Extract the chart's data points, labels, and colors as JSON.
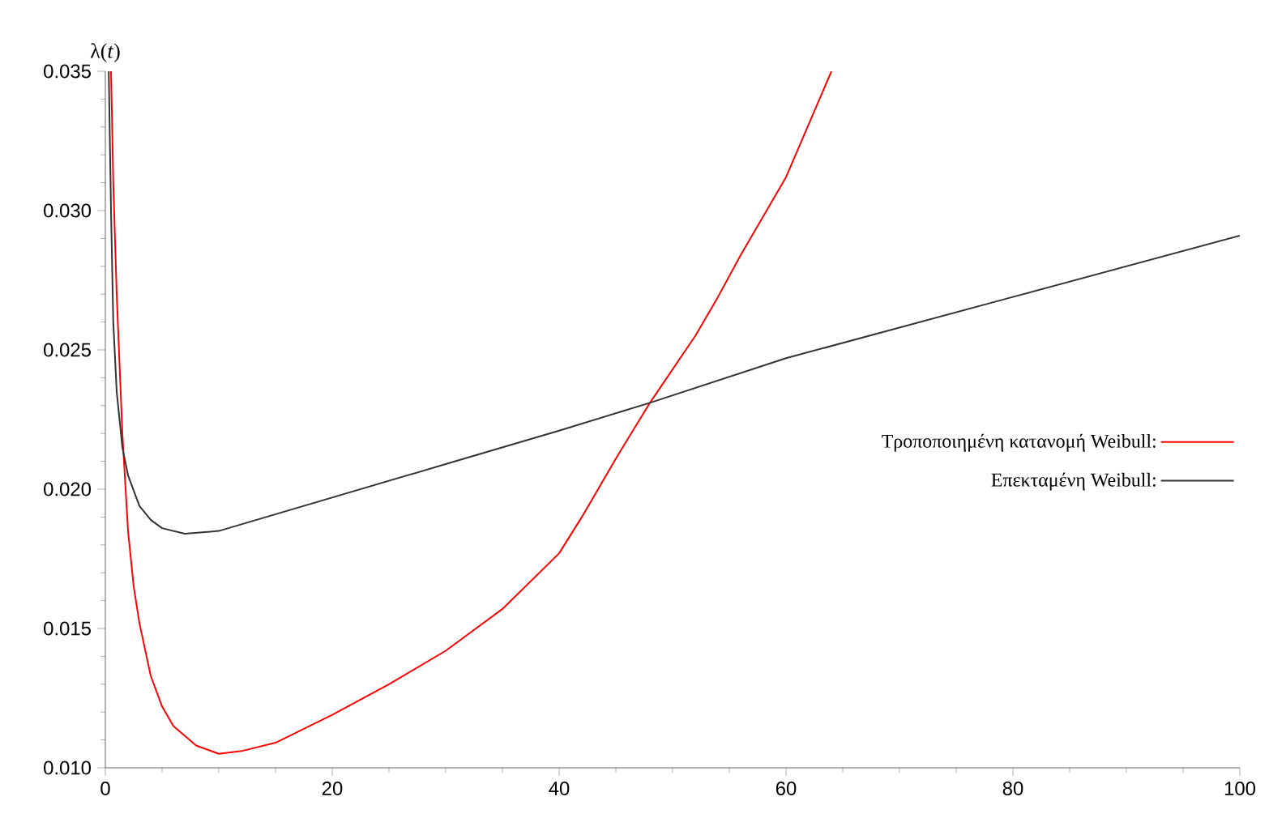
{
  "chart_data": {
    "type": "line",
    "ylabel": "λ(*t*)",
    "xlim": [
      0,
      100
    ],
    "ylim": [
      0.01,
      0.035
    ],
    "xticks": [
      0,
      20,
      40,
      60,
      80,
      100
    ],
    "yticks": [
      {
        "value": 0.01,
        "label": "0.010"
      },
      {
        "value": 0.015,
        "label": "0.015"
      },
      {
        "value": 0.02,
        "label": "0.020"
      },
      {
        "value": 0.025,
        "label": "0.025"
      },
      {
        "value": 0.03,
        "label": "0.030"
      },
      {
        "value": 0.035,
        "label": "0.035"
      }
    ],
    "grid": false,
    "legend": "right",
    "marker": "none",
    "line_style": "solid",
    "series": [
      {
        "name": "Τροποποιημένη κατανομή Weibull:",
        "color": "#ff0000",
        "x": [
          0.5,
          0.7,
          1,
          1.5,
          2,
          2.5,
          3,
          4,
          5,
          6,
          8,
          10,
          12,
          15,
          20,
          25,
          30,
          35,
          40,
          42,
          45,
          48,
          50,
          52,
          54,
          56,
          58,
          60,
          62,
          64
        ],
        "values": [
          0.035,
          0.031,
          0.027,
          0.022,
          0.0185,
          0.0165,
          0.0152,
          0.0133,
          0.0122,
          0.0115,
          0.0108,
          0.0105,
          0.0106,
          0.0109,
          0.0119,
          0.013,
          0.0142,
          0.0157,
          0.0177,
          0.019,
          0.0211,
          0.0231,
          0.0243,
          0.0255,
          0.0269,
          0.0284,
          0.0298,
          0.0312,
          0.0331,
          0.035
        ]
      },
      {
        "name": "Επεκταμένη Weibull:",
        "color": "#333333",
        "x": [
          0.3,
          0.5,
          0.7,
          1,
          1.5,
          2,
          3,
          4,
          5,
          7,
          10,
          15,
          20,
          30,
          40,
          48,
          60,
          80,
          100
        ],
        "values": [
          0.035,
          0.03,
          0.026,
          0.0235,
          0.0215,
          0.0205,
          0.0194,
          0.0189,
          0.0186,
          0.0184,
          0.0185,
          0.0191,
          0.0197,
          0.0209,
          0.0221,
          0.0231,
          0.0247,
          0.0269,
          0.0291
        ]
      }
    ]
  }
}
